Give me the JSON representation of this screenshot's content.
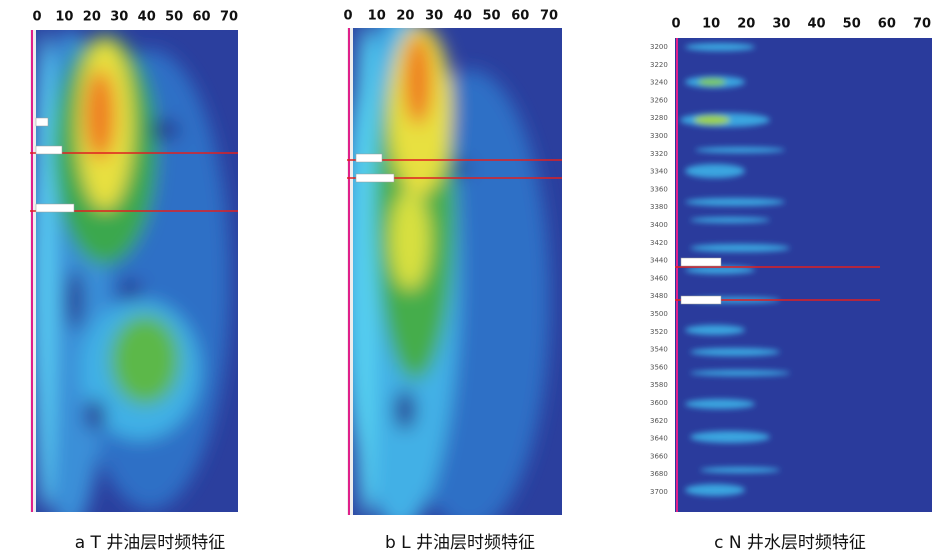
{
  "panels": [
    {
      "x_ticks": [
        "0",
        "10",
        "20",
        "30",
        "40",
        "50",
        "60",
        "70"
      ],
      "caption": "a T 井油层时频特征"
    },
    {
      "x_ticks": [
        "0",
        "10",
        "20",
        "30",
        "40",
        "50",
        "60",
        "70"
      ],
      "caption": "b L 井油层时频特征"
    },
    {
      "x_ticks": [
        "0",
        "10",
        "20",
        "30",
        "40",
        "50",
        "60",
        "70"
      ],
      "caption": "c N 井水层时频特征",
      "y_ticks": [
        "3200",
        "3220",
        "3240",
        "3260",
        "3280",
        "3300",
        "3320",
        "3340",
        "3360",
        "3380",
        "3400",
        "3420",
        "3440",
        "3460",
        "3480",
        "3500",
        "3520",
        "3540",
        "3560",
        "3580",
        "3600",
        "3620",
        "3640",
        "3660",
        "3680",
        "3700"
      ]
    }
  ]
}
